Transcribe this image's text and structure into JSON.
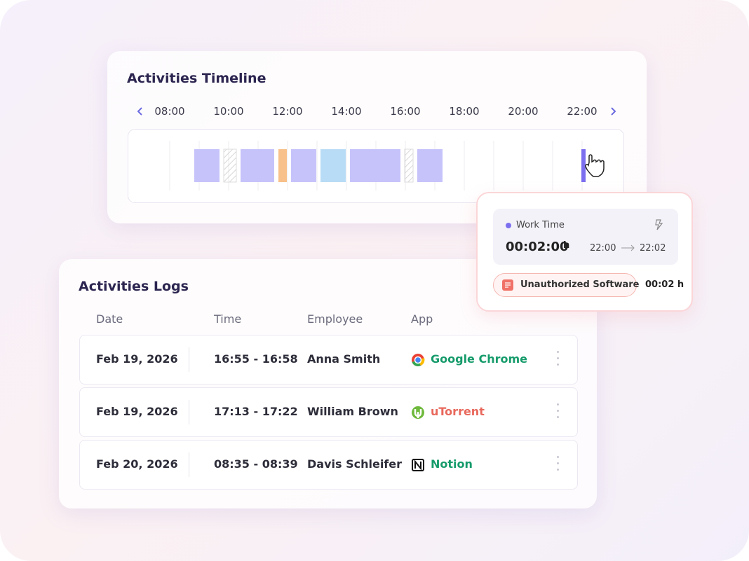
{
  "timeline": {
    "title": "Activities Timeline",
    "hours": [
      "08:00",
      "10:00",
      "12:00",
      "14:00",
      "16:00",
      "18:00",
      "20:00",
      "22:00"
    ]
  },
  "popup": {
    "label": "Work Time",
    "duration": "00:02:00",
    "unit": "h",
    "start": "22:00",
    "end": "22:02",
    "alert": "Unauthorized Software",
    "alert_duration": "00:02 h"
  },
  "logs": {
    "title": "Activities Logs",
    "columns": [
      "Date",
      "Time",
      "Employee",
      "App"
    ],
    "rows": [
      [
        "Feb 19, 2026",
        "16:55 - 16:58",
        "Anna Smith",
        "Google Chrome"
      ],
      [
        "Feb 19, 2026",
        "17:13 - 17:22",
        "William Brown",
        "uTorrent"
      ],
      [
        "Feb 20, 2026",
        "08:35 - 08:39",
        "Davis Schleifer",
        "Notion"
      ]
    ]
  }
}
